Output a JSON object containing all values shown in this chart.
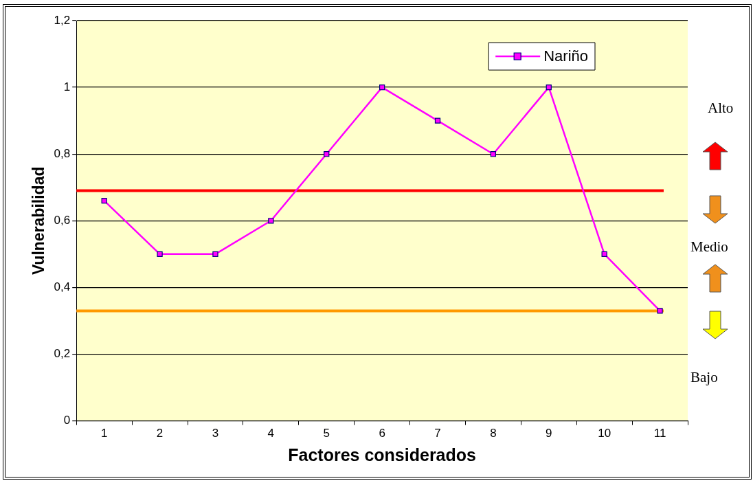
{
  "chart_data": {
    "type": "line",
    "xlabel": "Factores considerados",
    "ylabel": "Vulnerabilidad",
    "categories": [
      "1",
      "2",
      "3",
      "4",
      "5",
      "6",
      "7",
      "8",
      "9",
      "10",
      "11"
    ],
    "series": [
      {
        "name": "Nariño",
        "color": "#ff00ff",
        "values": [
          0.66,
          0.5,
          0.5,
          0.6,
          0.8,
          1,
          0.9,
          0.8,
          1,
          0.5,
          0.33
        ]
      }
    ],
    "ylim": [
      0,
      1.2
    ],
    "yticks": [
      0,
      {
        "value": 0.2,
        "label": "0,2"
      },
      {
        "value": 0.4,
        "label": "0,4"
      },
      {
        "value": 0.6,
        "label": "0,6"
      },
      {
        "value": 0.8,
        "label": "0,8"
      },
      1,
      {
        "value": 1.2,
        "label": "1,2"
      }
    ],
    "grid": "y",
    "legend": "top right",
    "marker": "square",
    "line_style": "solid",
    "ref_lines": [
      {
        "axis": "y",
        "value": 0.69,
        "color": "#ff0000"
      },
      {
        "axis": "y",
        "value": 0.33,
        "color": "#ff9900"
      }
    ],
    "annotations": [
      "Alto",
      "Medio",
      "Bajo"
    ]
  }
}
